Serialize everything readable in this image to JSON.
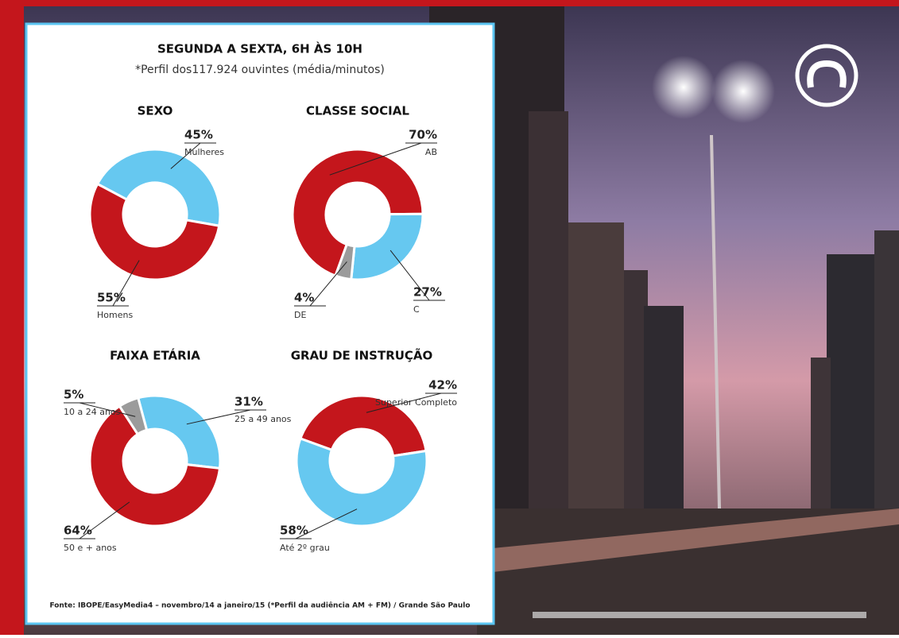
{
  "title": "SEGUNDA A SEXTA, 6H ÀS 10H",
  "subtitle": "*Perfil dos117.924 ouvintes (média/minutos)",
  "source": "Fonte: IBOPE/EasyMedia4 – novembro/14 a janeiro/15 (*Perfil da audiência AM + FM) / Grande São Paulo",
  "chart_data": [
    {
      "type": "donut",
      "title": "SEXO",
      "categories": [
        "Mulheres",
        "Homens"
      ],
      "values": [
        45,
        55
      ],
      "value_labels": [
        "45%",
        "55%"
      ],
      "colors": [
        "#66c8f0",
        "#c4161c"
      ]
    },
    {
      "type": "donut",
      "title": "CLASSE SOCIAL",
      "categories": [
        "AB",
        "C",
        "DE"
      ],
      "values": [
        70,
        27,
        4
      ],
      "value_labels": [
        "70%",
        "27%",
        "4%"
      ],
      "colors": [
        "#c4161c",
        "#66c8f0",
        "#9b9b9b"
      ]
    },
    {
      "type": "donut",
      "title": "FAIXA ETÁRIA",
      "categories": [
        "25 a 49 anos",
        "50 e + anos",
        "10 a 24 anos"
      ],
      "values": [
        31,
        64,
        5
      ],
      "value_labels": [
        "31%",
        "64%",
        "5%"
      ],
      "colors": [
        "#66c8f0",
        "#c4161c",
        "#9b9b9b"
      ]
    },
    {
      "type": "donut",
      "title": "GRAU DE INSTRUÇÃO",
      "categories": [
        "Superior Completo",
        "Até 2º grau"
      ],
      "values": [
        42,
        58
      ],
      "value_labels": [
        "42%",
        "58%"
      ],
      "colors": [
        "#c4161c",
        "#66c8f0"
      ]
    }
  ]
}
